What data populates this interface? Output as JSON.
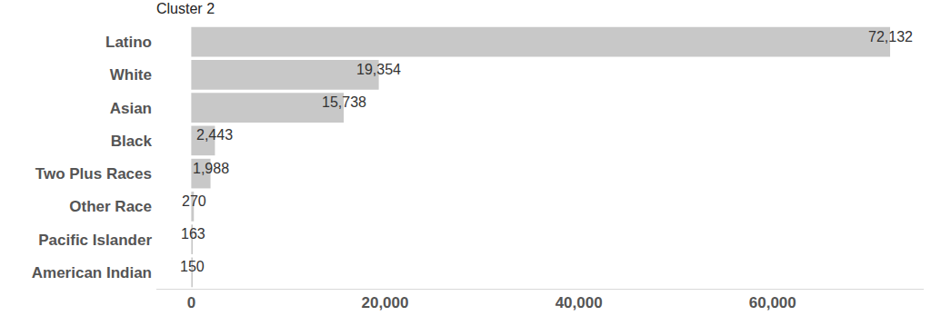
{
  "chart_data": {
    "type": "bar",
    "title": "Cluster 2",
    "orientation": "horizontal",
    "categories": [
      "Latino",
      "White",
      "Asian",
      "Black",
      "Two Plus Races",
      "Other Race",
      "Pacific Islander",
      "American Indian"
    ],
    "values": [
      72132,
      19354,
      15738,
      2443,
      1988,
      270,
      163,
      150
    ],
    "value_labels": [
      "72,132",
      "19,354",
      "15,738",
      "2,443",
      "1,988",
      "270",
      "163",
      "150"
    ],
    "color": "#c8c8c8",
    "xlim": [
      -3600,
      75600
    ],
    "xticks": [
      0,
      {
        "value": 20000,
        "label": "20,000"
      },
      {
        "value": 40000,
        "label": "40,000"
      },
      {
        "value": 60000,
        "label": "60,000"
      }
    ],
    "grid": false,
    "data_labels": true
  }
}
